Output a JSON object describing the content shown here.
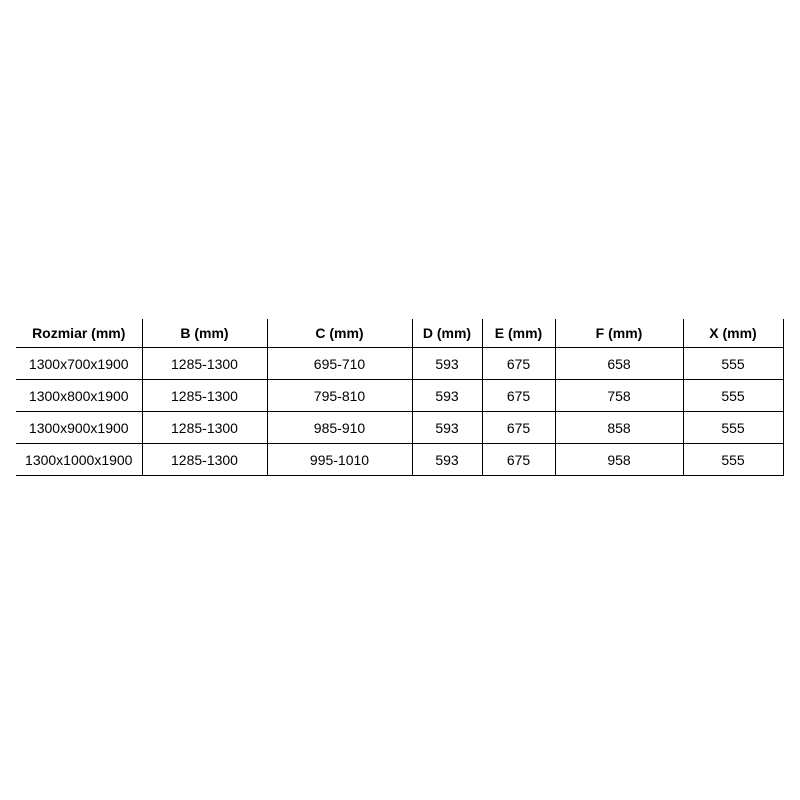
{
  "colors": {
    "background": "#ffffff",
    "border": "#000000",
    "text": "#000000"
  },
  "chart_data": {
    "type": "table",
    "columns": [
      "Rozmiar (mm)",
      "B (mm)",
      "C (mm)",
      "D (mm)",
      "E (mm)",
      "F (mm)",
      "X (mm)"
    ],
    "rows": [
      [
        "1300x700x1900",
        "1285-1300",
        "695-710",
        "593",
        "675",
        "658",
        "555"
      ],
      [
        "1300x800x1900",
        "1285-1300",
        "795-810",
        "593",
        "675",
        "758",
        "555"
      ],
      [
        "1300x900x1900",
        "1285-1300",
        "985-910",
        "593",
        "675",
        "858",
        "555"
      ],
      [
        "1300x1000x1900",
        "1285-1300",
        "995-1010",
        "593",
        "675",
        "958",
        "555"
      ]
    ],
    "layout": {
      "grid": "on",
      "top_border": "none",
      "left_border": "none",
      "text_align": "center"
    }
  }
}
